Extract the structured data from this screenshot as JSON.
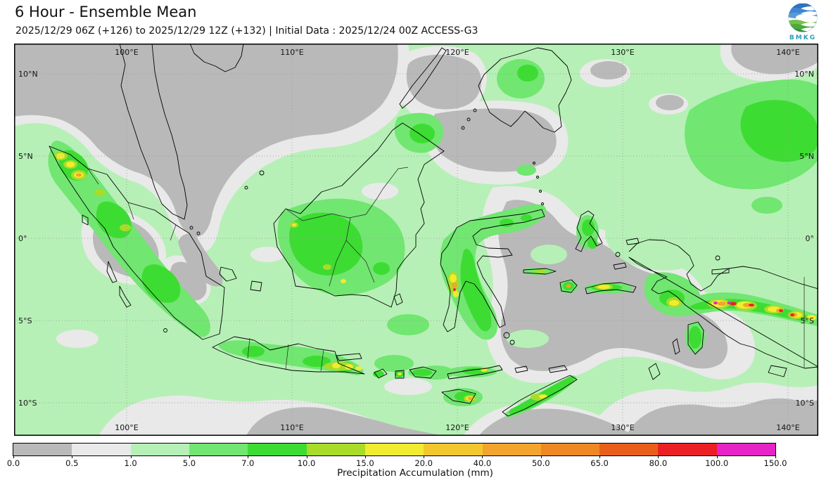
{
  "header": {
    "title": "6 Hour - Ensemble Mean",
    "subtitle": "2025/12/29 06Z (+126) to 2025/12/29 12Z (+132) | Initial Data : 2025/12/24 00Z ACCESS-G3",
    "logo_text": "BMKG"
  },
  "map": {
    "lat_labels": [
      "10°N",
      "5°N",
      "0°",
      "5°S",
      "10°S"
    ],
    "lon_labels": [
      "100°E",
      "110°E",
      "120°E",
      "130°E",
      "140°E"
    ]
  },
  "colorbar": {
    "label": "Precipitation Accumulation (mm)",
    "ticks": [
      "0.0",
      "0.5",
      "1.0",
      "5.0",
      "7.0",
      "10.0",
      "15.0",
      "20.0",
      "40.0",
      "50.0",
      "65.0",
      "80.0",
      "100.0",
      "150.0"
    ],
    "boundaries_mm": [
      0.0,
      0.5,
      1.0,
      5.0,
      7.0,
      10.0,
      15.0,
      20.0,
      40.0,
      50.0,
      65.0,
      80.0,
      100.0,
      150.0
    ],
    "colors": [
      "#b9b9b9",
      "#e9e9e9",
      "#b6f0b6",
      "#71e671",
      "#3ddc32",
      "#a8dc28",
      "#f1ec2f",
      "#f2c72e",
      "#f2a42c",
      "#ef8722",
      "#e95f1a",
      "#ec2024",
      "#e722c7"
    ]
  }
}
